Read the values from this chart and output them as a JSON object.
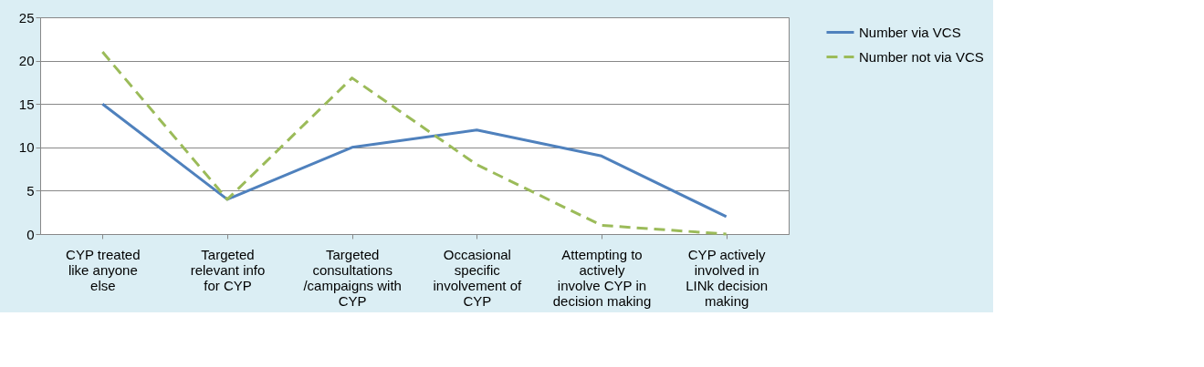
{
  "chart_data": {
    "type": "line",
    "categories": [
      "CYP treated like anyone else",
      "Targeted relevant info for CYP",
      "Targeted consultations /campaigns with CYP",
      "Occasional specific involvement of CYP",
      "Attempting to actively involve CYP in decision making",
      "CYP actively involved in LINk decision making"
    ],
    "series": [
      {
        "name": "Number via VCS",
        "color": "#4f81bd",
        "line_style": "solid",
        "values": [
          15,
          4,
          10,
          12,
          9,
          2
        ]
      },
      {
        "name": "Number not via VCS",
        "color": "#9bbb59",
        "line_style": "dashed",
        "values": [
          21,
          4,
          18,
          8,
          1,
          0
        ]
      }
    ],
    "ylim": [
      0,
      25
    ],
    "yticks": [
      0,
      5,
      10,
      15,
      20,
      25
    ],
    "grid": "y",
    "legend": "right",
    "marker": "none"
  }
}
